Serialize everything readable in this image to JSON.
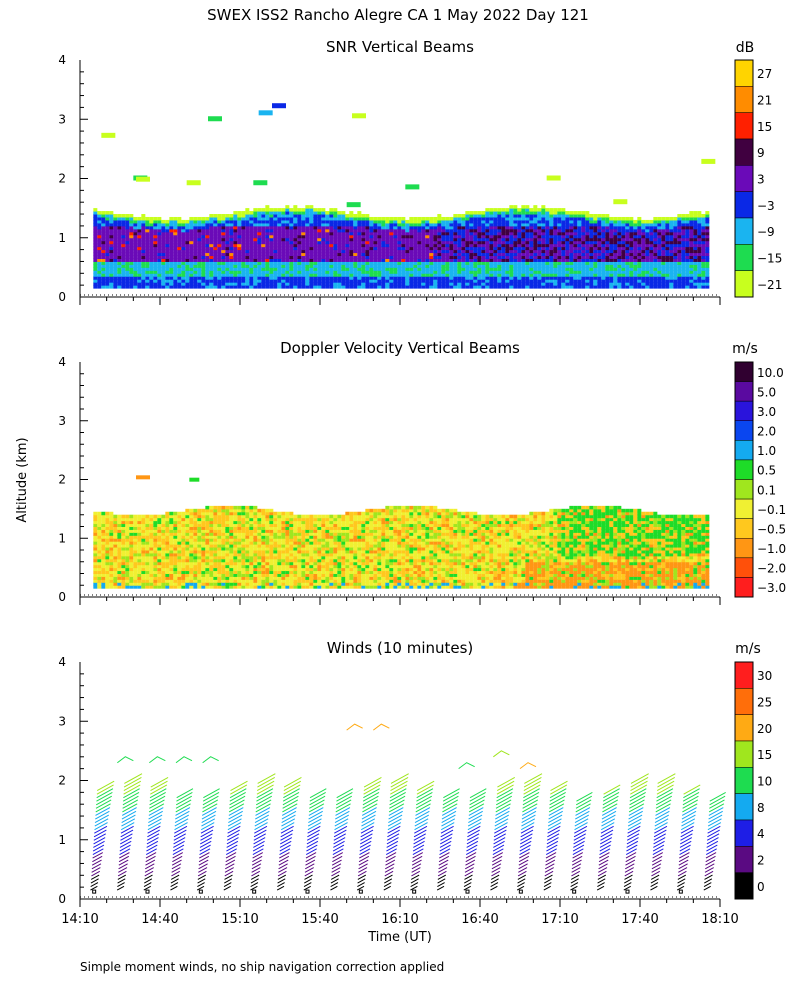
{
  "header": {
    "title": "SWEX ISS2 Rancho Alegre CA   1 May 2022 Day 121",
    "y_axis_label": "Altitude (km)",
    "footnote": "Simple moment winds, no ship navigation correction applied"
  },
  "chart_data": [
    {
      "type": "heatmap",
      "title": "SNR Vertical Beams",
      "ylim": [
        0,
        4
      ],
      "yticks": [
        "0",
        "1",
        "2",
        "3",
        "4"
      ],
      "xlim_minutes": [
        0,
        240
      ],
      "colorbar": {
        "unit": "dB",
        "labels": [
          "27",
          "21",
          "15",
          "9",
          "3",
          "−3",
          "−9",
          "−15",
          "−21"
        ],
        "colors": [
          "#ffd400",
          "#ff8c00",
          "#ff2000",
          "#400040",
          "#6a0ab8",
          "#0a28e6",
          "#1ab4f0",
          "#1edc50",
          "#c8ff1e"
        ]
      }
    },
    {
      "type": "heatmap",
      "title": "Doppler Velocity Vertical Beams",
      "ylim": [
        0,
        4
      ],
      "yticks": [
        "0",
        "1",
        "2",
        "3",
        "4"
      ],
      "xlim_minutes": [
        0,
        240
      ],
      "colorbar": {
        "unit": "m/s",
        "labels": [
          "10.0",
          "5.0",
          "3.0",
          "2.0",
          "1.0",
          "0.5",
          "0.1",
          "−0.1",
          "−0.5",
          "−1.0",
          "−2.0",
          "−3.0"
        ],
        "colors": [
          "#300030",
          "#5a0aa0",
          "#2a14dc",
          "#0a46f0",
          "#14aaf0",
          "#1edc28",
          "#a0e61e",
          "#f0f032",
          "#ffc81e",
          "#ff9614",
          "#ff500a",
          "#ff1e1e"
        ]
      }
    },
    {
      "type": "scatter",
      "title": "Winds (10 minutes)",
      "ylim": [
        0,
        4
      ],
      "yticks": [
        "0",
        "1",
        "2",
        "3",
        "4"
      ],
      "xlabel": "Time (UT)",
      "xticks": [
        "14:10",
        "14:40",
        "15:10",
        "15:40",
        "16:10",
        "16:40",
        "17:10",
        "17:40",
        "18:10"
      ],
      "colorbar": {
        "unit": "m/s",
        "labels": [
          "30",
          "25",
          "20",
          "15",
          "10",
          "8",
          "4",
          "2",
          "0"
        ],
        "colors": [
          "#ff1e1e",
          "#ff6e0a",
          "#ffaa14",
          "#a0e61e",
          "#1edc50",
          "#14aaf0",
          "#1e1ee6",
          "#5a0a82",
          "#000000"
        ]
      }
    }
  ]
}
